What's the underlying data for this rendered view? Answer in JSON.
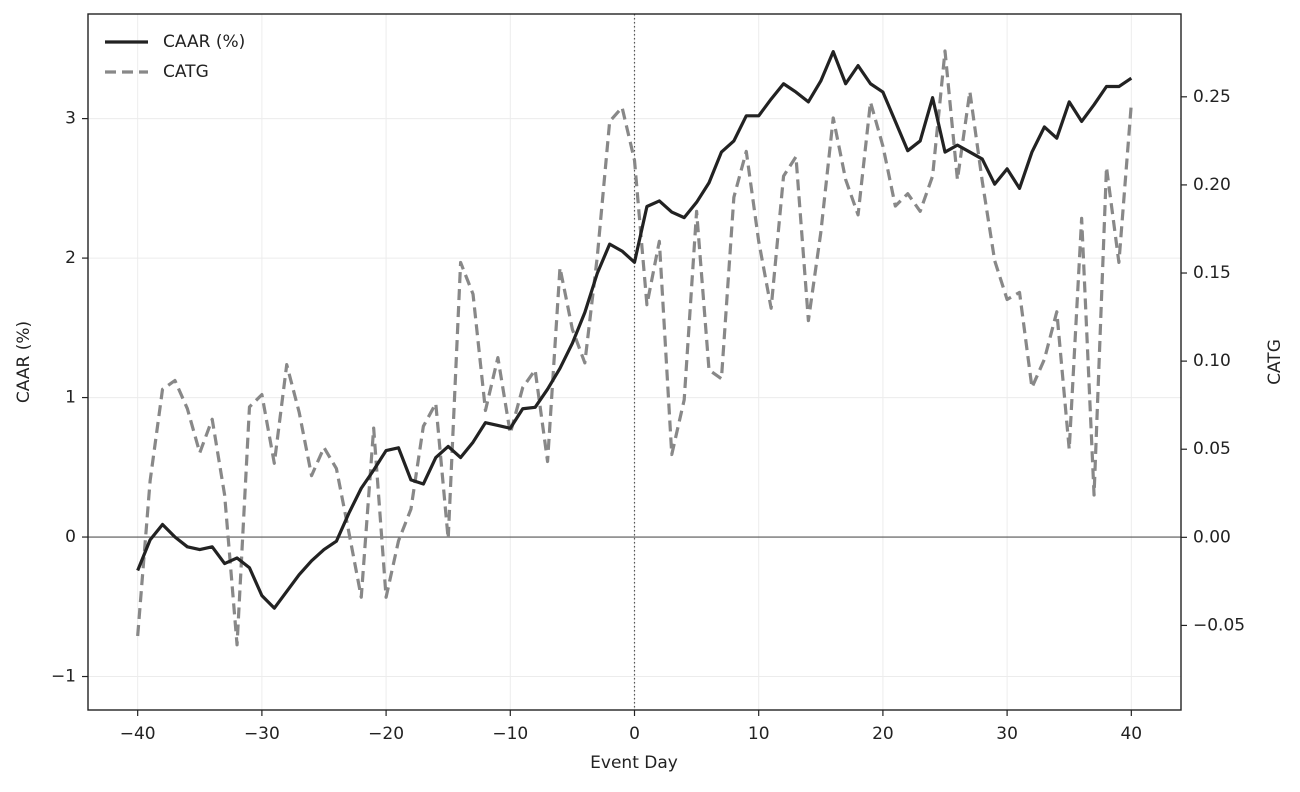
{
  "chart_data": {
    "type": "line",
    "xlabel": "Event Day",
    "ylabel": "CAAR (%)",
    "y2label": "CATG",
    "x": [
      -40,
      -39,
      -38,
      -37,
      -36,
      -35,
      -34,
      -33,
      -32,
      -31,
      -30,
      -29,
      -28,
      -27,
      -26,
      -25,
      -24,
      -23,
      -22,
      -21,
      -20,
      -19,
      -18,
      -17,
      -16,
      -15,
      -14,
      -13,
      -12,
      -11,
      -10,
      -9,
      -8,
      -7,
      -6,
      -5,
      -4,
      -3,
      -2,
      -1,
      0,
      1,
      2,
      3,
      4,
      5,
      6,
      7,
      8,
      9,
      10,
      11,
      12,
      13,
      14,
      15,
      16,
      17,
      18,
      19,
      20,
      21,
      22,
      23,
      24,
      25,
      26,
      27,
      28,
      29,
      30,
      31,
      32,
      33,
      34,
      35,
      36,
      37,
      38,
      39,
      40
    ],
    "series": [
      {
        "name": "CAAR (%)",
        "color": "#222222",
        "dash": false,
        "axis": "y",
        "values": [
          -0.24,
          -0.02,
          0.09,
          0.0,
          -0.07,
          -0.09,
          -0.07,
          -0.19,
          -0.15,
          -0.22,
          -0.42,
          -0.51,
          -0.39,
          -0.27,
          -0.17,
          -0.09,
          -0.03,
          0.17,
          0.35,
          0.48,
          0.62,
          0.64,
          0.41,
          0.38,
          0.57,
          0.65,
          0.57,
          0.68,
          0.82,
          0.8,
          0.78,
          0.92,
          0.93,
          1.06,
          1.21,
          1.39,
          1.61,
          1.89,
          2.1,
          2.05,
          1.97,
          2.37,
          2.41,
          2.33,
          2.29,
          2.4,
          2.54,
          2.76,
          2.84,
          3.02,
          3.02,
          3.14,
          3.25,
          3.19,
          3.12,
          3.27,
          3.48,
          3.25,
          3.38,
          3.25,
          3.19,
          2.98,
          2.77,
          2.84,
          3.15,
          2.76,
          2.81,
          2.76,
          2.71,
          2.53,
          2.64,
          2.5,
          2.76,
          2.94,
          2.86,
          3.12,
          2.98,
          3.1,
          3.23,
          3.23,
          3.29
        ]
      },
      {
        "name": "CATG",
        "color": "#888888",
        "dash": true,
        "axis": "y2",
        "values": [
          -0.056,
          0.032,
          0.084,
          0.089,
          0.073,
          0.048,
          0.067,
          0.024,
          -0.061,
          0.074,
          0.081,
          0.042,
          0.098,
          0.071,
          0.035,
          0.051,
          0.039,
          0.003,
          -0.034,
          0.062,
          -0.034,
          -0.002,
          0.016,
          0.063,
          0.076,
          -0.001,
          0.156,
          0.138,
          0.072,
          0.102,
          0.059,
          0.085,
          0.095,
          0.043,
          0.153,
          0.118,
          0.099,
          0.159,
          0.236,
          0.244,
          0.214,
          0.132,
          0.168,
          0.047,
          0.078,
          0.185,
          0.095,
          0.09,
          0.193,
          0.219,
          0.168,
          0.13,
          0.205,
          0.216,
          0.123,
          0.173,
          0.238,
          0.203,
          0.183,
          0.247,
          0.222,
          0.188,
          0.195,
          0.185,
          0.205,
          0.276,
          0.203,
          0.253,
          0.202,
          0.157,
          0.135,
          0.139,
          0.085,
          0.101,
          0.128,
          0.05,
          0.181,
          0.024,
          0.21,
          0.156,
          0.246
        ]
      }
    ],
    "xlim": [
      -44,
      44
    ],
    "xticks": [
      {
        "value": -40,
        "label": "−40"
      },
      {
        "value": -30,
        "label": "−30"
      },
      {
        "value": -20,
        "label": "−20"
      },
      {
        "value": -10,
        "label": "−10"
      },
      0,
      10,
      20,
      30,
      40
    ],
    "ylim": [
      -1.24,
      3.75
    ],
    "yticks": [
      {
        "value": -1,
        "label": "−1"
      },
      0,
      1,
      2,
      3
    ],
    "y2lim": [
      -0.098,
      0.297
    ],
    "y2ticks": [
      {
        "value": -0.05,
        "label": "−0.05"
      },
      {
        "value": 0,
        "label": "0.00"
      },
      {
        "value": 0.05,
        "label": "0.05"
      },
      {
        "value": 0.1,
        "label": "0.10"
      },
      {
        "value": 0.15,
        "label": "0.15"
      },
      {
        "value": 0.2,
        "label": "0.20"
      },
      {
        "value": 0.25,
        "label": "0.25"
      }
    ],
    "hline": 0,
    "vline": 0,
    "grid": true,
    "legend": "upper-left"
  }
}
